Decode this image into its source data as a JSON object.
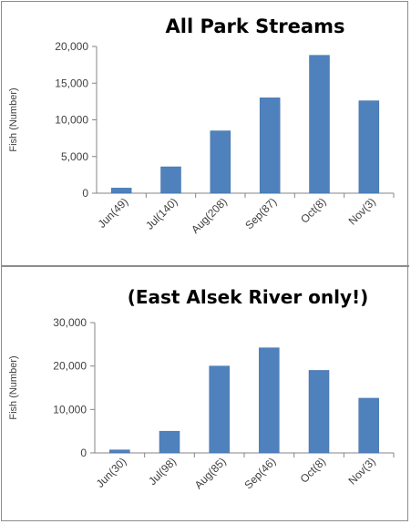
{
  "chart_data": [
    {
      "type": "bar",
      "title": "All Park Streams",
      "ylabel": "Fish (Number)",
      "xlabel": "",
      "categories": [
        "Jun(49)",
        "Jul(140)",
        "Aug(208)",
        "Sep(87)",
        "Oct(8)",
        "Nov(3)"
      ],
      "values": [
        700,
        3600,
        8500,
        13000,
        18800,
        12600
      ],
      "ylim": [
        0,
        20000
      ],
      "yticks": [
        "0",
        "5,000",
        "10,000",
        "15,000",
        "20,000"
      ],
      "grid": false,
      "color": "#4f81bd"
    },
    {
      "type": "bar",
      "title": "(East Alsek River only!)",
      "ylabel": "Fish (Number)",
      "xlabel": "",
      "categories": [
        "Jun(30)",
        "Jul(98)",
        "Aug(85)",
        "Sep(46)",
        "Oct(8)",
        "Nov(3)"
      ],
      "values": [
        700,
        5000,
        20000,
        24200,
        19000,
        12600
      ],
      "ylim": [
        0,
        30000
      ],
      "yticks": [
        "0",
        "10,000",
        "20,000",
        "30,000"
      ],
      "grid": false,
      "color": "#4f81bd"
    }
  ]
}
